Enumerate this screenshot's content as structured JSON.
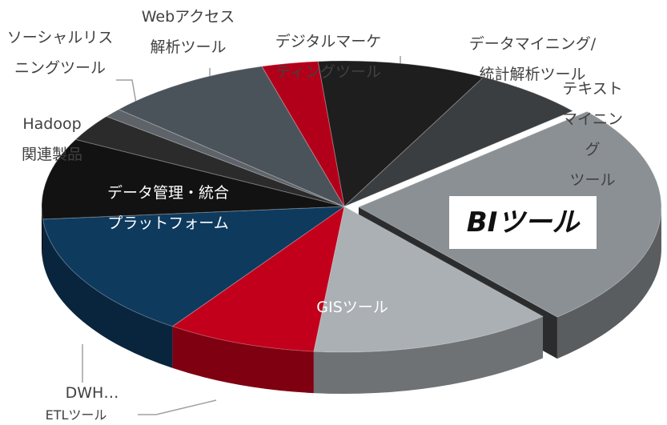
{
  "chart_data": {
    "type": "pie3d",
    "categories": [
      "データマイニング/統計解析ツール",
      "テキストマイニング\nツール",
      "BIツール",
      "GISツール",
      "ETLツール",
      "DWH…",
      "データ管理・統合\nプラットフォーム",
      "Hadoop\n関連製品",
      "ソーシャルリス\nニングツール",
      "Webアクセス\n解析ツール",
      "デジタルマーケ\nティングツール"
    ],
    "values": [
      9,
      6,
      25,
      13,
      8,
      14,
      9,
      3,
      1,
      9,
      3
    ],
    "colors": [
      "#1e1e1e",
      "#3b3e41",
      "#8b9094",
      "#aab0b4",
      "#c2001b",
      "#0e3a5e",
      "#121212",
      "#2b2b2b",
      "#5d6369",
      "#4b535a",
      "#b3001a"
    ],
    "exploded": 2
  }
}
